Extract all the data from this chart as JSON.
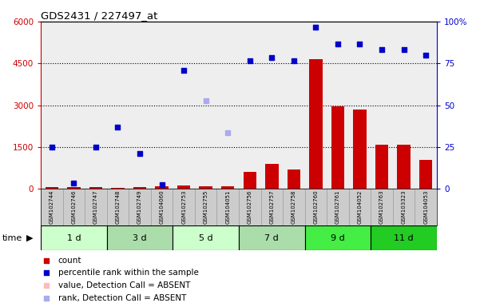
{
  "title": "GDS2431 / 227497_at",
  "samples": [
    "GSM102744",
    "GSM102746",
    "GSM102747",
    "GSM102748",
    "GSM102749",
    "GSM104060",
    "GSM102753",
    "GSM102755",
    "GSM104051",
    "GSM102756",
    "GSM102757",
    "GSM102758",
    "GSM102760",
    "GSM102761",
    "GSM104052",
    "GSM102763",
    "GSM103323",
    "GSM104053"
  ],
  "groups": [
    {
      "label": "1 d",
      "indices": [
        0,
        1,
        2
      ],
      "color": "#ccffcc"
    },
    {
      "label": "3 d",
      "indices": [
        3,
        4,
        5
      ],
      "color": "#aaddaa"
    },
    {
      "label": "5 d",
      "indices": [
        6,
        7,
        8
      ],
      "color": "#ccffcc"
    },
    {
      "label": "7 d",
      "indices": [
        9,
        10,
        11
      ],
      "color": "#aaddaa"
    },
    {
      "label": "9 d",
      "indices": [
        12,
        13,
        14
      ],
      "color": "#44ee44"
    },
    {
      "label": "11 d",
      "indices": [
        15,
        16,
        17
      ],
      "color": "#22cc22"
    }
  ],
  "count_values": [
    50,
    60,
    70,
    40,
    50,
    100,
    120,
    90,
    100,
    600,
    900,
    700,
    4650,
    2970,
    2850,
    1580,
    1570,
    1050
  ],
  "percentile_values": [
    1500,
    200,
    1500,
    2200,
    1280,
    150,
    4250,
    3150,
    2000,
    4600,
    4700,
    4600,
    5800,
    5200,
    5200,
    5000,
    5000,
    4800
  ],
  "absent_rank_indices": [
    7,
    8
  ],
  "ylim_left": [
    0,
    6000
  ],
  "ylim_right": [
    0,
    100
  ],
  "yticks_left": [
    0,
    1500,
    3000,
    4500,
    6000
  ],
  "yticks_right": [
    0,
    25,
    50,
    75,
    100
  ],
  "bg_color": "#ffffff",
  "plot_bg": "#eeeeee",
  "bar_color_present": "#cc0000",
  "dot_color_present": "#0000cc",
  "dot_color_absent": "#aaaaee",
  "grid_ticks": [
    1500,
    3000,
    4500
  ]
}
